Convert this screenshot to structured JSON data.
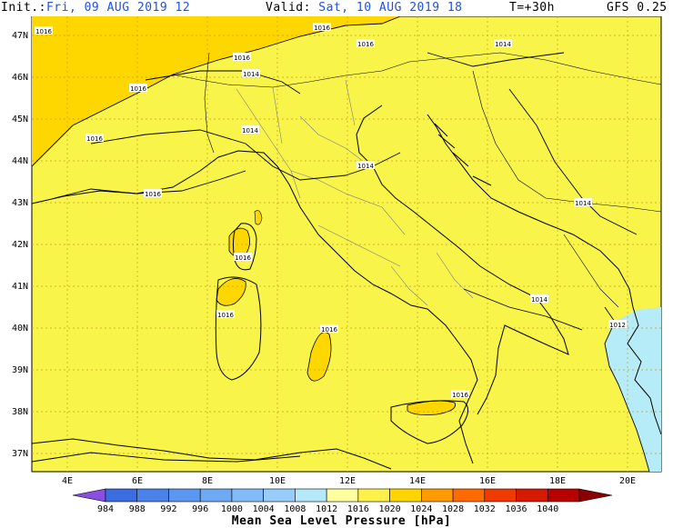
{
  "header": {
    "init_key": "Init.:",
    "init_val": "Fri, 09 AUG 2019  12",
    "valid_key": "Valid:",
    "valid_val": "Sat, 10 AUG 2019  18",
    "step": "T=+30h",
    "model": "GFS 0.25"
  },
  "axes": {
    "lat_labels": [
      "47N",
      "46N",
      "45N",
      "44N",
      "43N",
      "42N",
      "41N",
      "40N",
      "39N",
      "38N",
      "37N"
    ],
    "lon_labels": [
      "4E",
      "6E",
      "8E",
      "10E",
      "12E",
      "14E",
      "16E",
      "18E",
      "20E"
    ]
  },
  "isobar_labels": [
    "1016",
    "1016",
    "1016",
    "1014",
    "1016",
    "1014",
    "1014",
    "1016",
    "1014",
    "1016",
    "1016",
    "1014",
    "1016",
    "1014",
    "1012",
    "1016",
    "1016",
    "1016"
  ],
  "colorbar": {
    "ticks": [
      "984",
      "988",
      "992",
      "996",
      "1000",
      "1004",
      "1008",
      "1012",
      "1016",
      "1020",
      "1024",
      "1028",
      "1032",
      "1036",
      "1040"
    ],
    "colors": [
      "#3a6ee0",
      "#4a82ea",
      "#5b96f0",
      "#6eaaf4",
      "#82bcf8",
      "#98ccfa",
      "#b6e8fb",
      "#ffffa0",
      "#fff04a",
      "#ffd400",
      "#ff9a00",
      "#ff6a00",
      "#ef3a00",
      "#d61a00",
      "#b80000"
    ],
    "title": "Mean Sea Level Pressure [hPa]"
  },
  "fields": {
    "land_sea_fill": "#f8f44a",
    "high_fill": "#ffd700",
    "low_fill": "#b6ecf8"
  }
}
